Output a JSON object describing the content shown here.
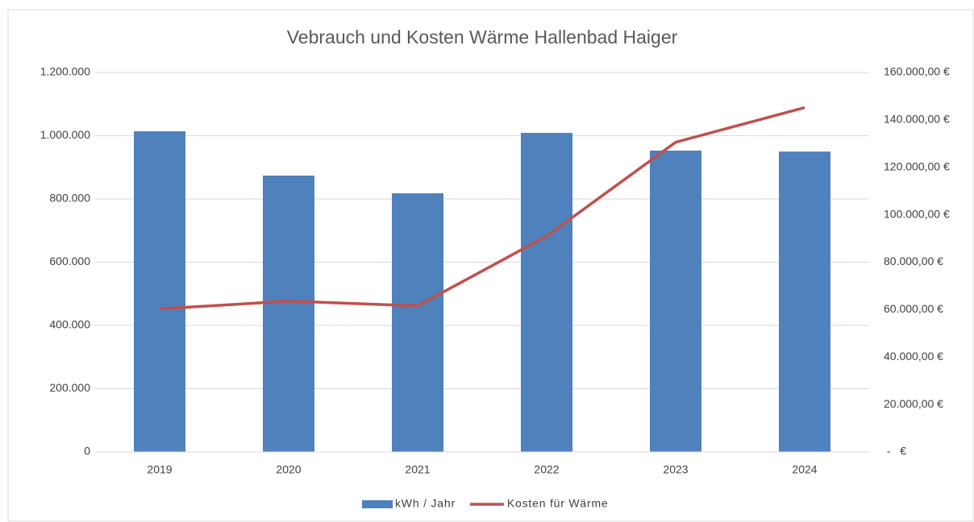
{
  "chart_data": {
    "type": "bar",
    "title": "Vebrauch und Kosten Wärme Hallenbad Haiger",
    "categories": [
      "2019",
      "2020",
      "2021",
      "2022",
      "2023",
      "2024"
    ],
    "series": [
      {
        "name": "kWh / Jahr",
        "type": "bar",
        "color": "#4f81bd",
        "values": [
          1014000,
          874000,
          818000,
          1009000,
          953000,
          950000
        ]
      },
      {
        "name": "Kosten für Wärme",
        "type": "line",
        "axis": "y2",
        "color": "#c0504d",
        "values": [
          60300,
          63600,
          61600,
          91000,
          130600,
          145200
        ]
      }
    ],
    "ylim": [
      0,
      1200000
    ],
    "yticks": [
      0,
      {
        "value": 200000,
        "label": "200.000"
      },
      {
        "value": 400000,
        "label": "400.000"
      },
      {
        "value": 600000,
        "label": "600.000"
      },
      {
        "value": 800000,
        "label": "800.000"
      },
      {
        "value": 1000000,
        "label": "1.000.000"
      },
      {
        "value": 1200000,
        "label": "1.200.000"
      }
    ],
    "y2lim": [
      0,
      160000
    ],
    "y2ticks": [
      {
        "value": 0,
        "label": " -   € "
      },
      {
        "value": 20000,
        "label": "20.000,00 €"
      },
      {
        "value": 40000,
        "label": "40.000,00 €"
      },
      {
        "value": 60000,
        "label": "60.000,00 €"
      },
      {
        "value": 80000,
        "label": "80.000,00 €"
      },
      {
        "value": 100000,
        "label": "100.000,00 €"
      },
      {
        "value": 120000,
        "label": "120.000,00 €"
      },
      {
        "value": 140000,
        "label": "140.000,00 €"
      },
      {
        "value": 160000,
        "label": "160.000,00 €"
      }
    ],
    "grid": true,
    "legend": "bottom"
  }
}
